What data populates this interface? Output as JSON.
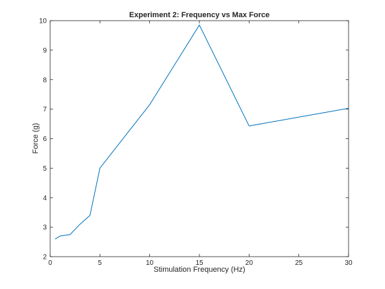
{
  "chart_data": {
    "type": "line",
    "title": "Experiment 2: Frequency vs Max Force",
    "xlabel": "Stimulation Frequency (Hz)",
    "ylabel": "Force (g)",
    "xlim": [
      0,
      30
    ],
    "ylim": [
      2,
      10
    ],
    "xticks": [
      0,
      5,
      10,
      15,
      20,
      25,
      30
    ],
    "yticks": [
      2,
      3,
      4,
      5,
      6,
      7,
      8,
      9,
      10
    ],
    "grid": false,
    "series": [
      {
        "color": "#0072bd",
        "x": [
          0.5,
          1,
          2,
          3,
          4,
          5,
          10,
          15,
          20,
          30
        ],
        "y": [
          2.6,
          2.7,
          2.75,
          3.1,
          3.4,
          5.0,
          7.15,
          9.85,
          6.43,
          7.03
        ]
      }
    ]
  }
}
